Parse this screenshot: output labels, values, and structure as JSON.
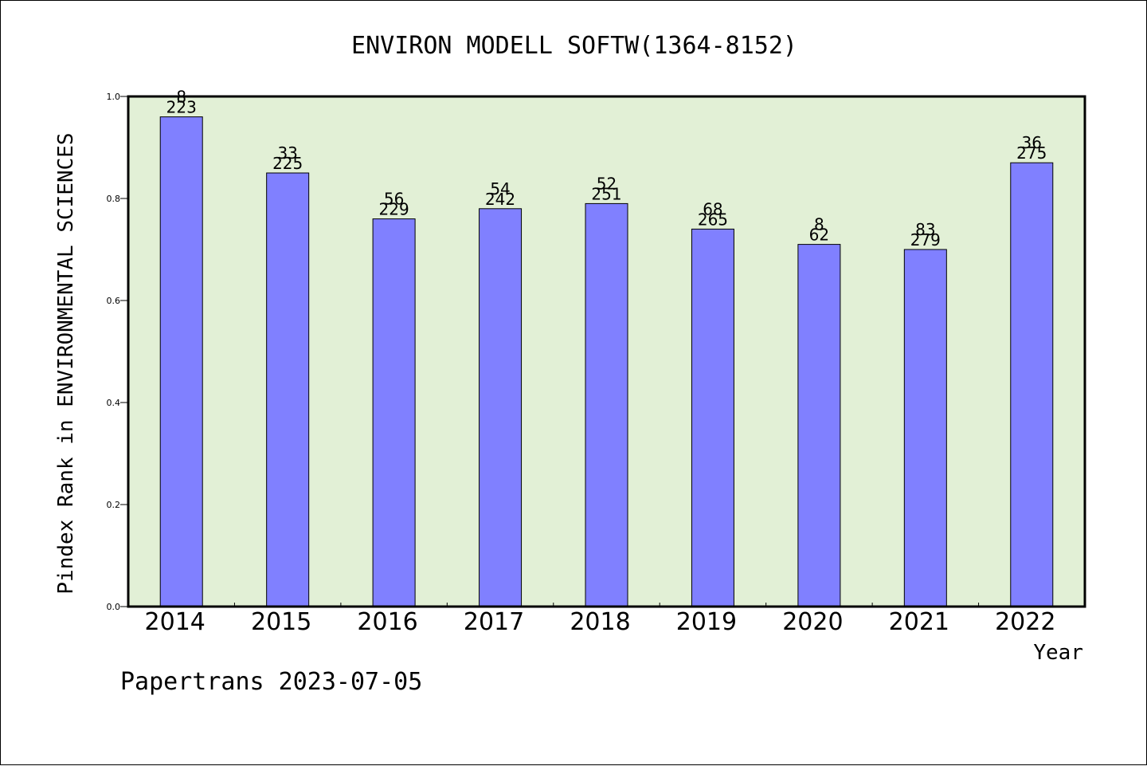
{
  "chart_data": {
    "type": "bar",
    "title": "ENVIRON MODELL SOFTW(1364-8152)",
    "xlabel": "Year",
    "ylabel": "Pindex Rank in ENVIRONMENTAL SCIENCES",
    "categories": [
      "2014",
      "2015",
      "2016",
      "2017",
      "2018",
      "2019",
      "2020",
      "2021",
      "2022"
    ],
    "values": [
      0.96,
      0.85,
      0.76,
      0.78,
      0.79,
      0.74,
      0.71,
      0.7,
      0.87
    ],
    "labels_top": [
      "8",
      "33",
      "56",
      "54",
      "52",
      "68",
      "8",
      "83",
      "36"
    ],
    "labels_bottom": [
      "223",
      "225",
      "229",
      "242",
      "251",
      "265",
      "62",
      "279",
      "275"
    ],
    "ylim": [
      0,
      1.0
    ],
    "yticks": [
      "0.0",
      "0.2",
      "0.4",
      "0.6",
      "0.8",
      "1.0"
    ],
    "grid": false,
    "colors": {
      "bar_fill": "#8080ff",
      "plot_background": "#e2f0d6",
      "axis": "#000000"
    }
  },
  "footer": {
    "text": "Papertrans 2023-07-05"
  }
}
